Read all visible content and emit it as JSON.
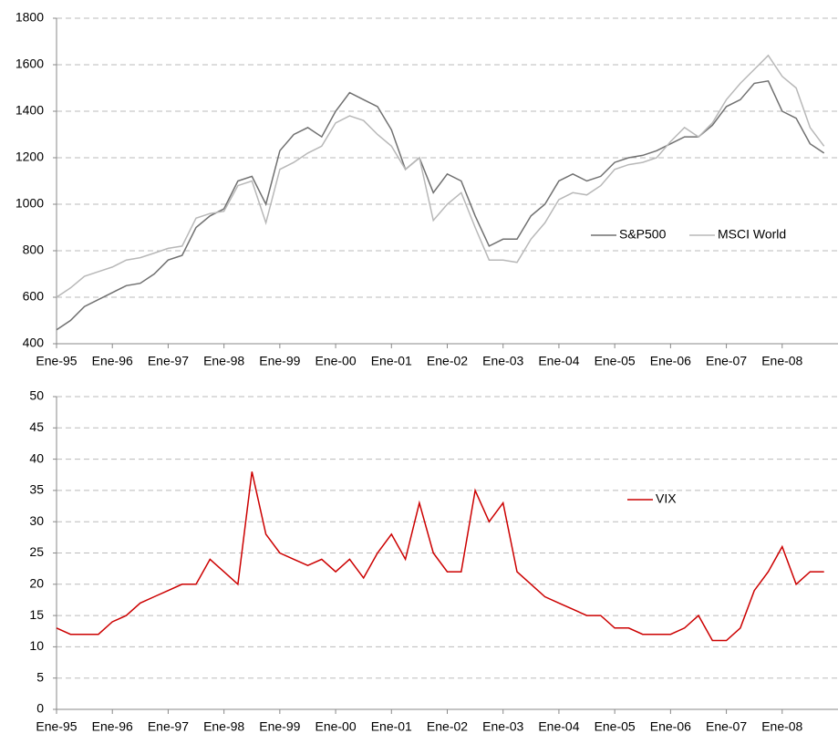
{
  "chart_data": [
    {
      "type": "line",
      "x": [
        "1995-01",
        "1995-04",
        "1995-07",
        "1995-10",
        "1996-01",
        "1996-04",
        "1996-07",
        "1996-10",
        "1997-01",
        "1997-04",
        "1997-07",
        "1997-10",
        "1998-01",
        "1998-04",
        "1998-07",
        "1998-10",
        "1999-01",
        "1999-04",
        "1999-07",
        "1999-10",
        "2000-01",
        "2000-04",
        "2000-07",
        "2000-10",
        "2001-01",
        "2001-04",
        "2001-07",
        "2001-10",
        "2002-01",
        "2002-04",
        "2002-07",
        "2002-10",
        "2003-01",
        "2003-04",
        "2003-07",
        "2003-10",
        "2004-01",
        "2004-04",
        "2004-07",
        "2004-10",
        "2005-01",
        "2005-04",
        "2005-07",
        "2005-10",
        "2006-01",
        "2006-04",
        "2006-07",
        "2006-10",
        "2007-01",
        "2007-04",
        "2007-07",
        "2007-10",
        "2008-01",
        "2008-04",
        "2008-07",
        "2008-10"
      ],
      "series": [
        {
          "name": "S&P500",
          "color": "#707070",
          "values": [
            460,
            500,
            560,
            590,
            620,
            650,
            660,
            700,
            760,
            780,
            900,
            950,
            980,
            1100,
            1120,
            1000,
            1230,
            1300,
            1330,
            1290,
            1400,
            1480,
            1450,
            1420,
            1320,
            1150,
            1200,
            1050,
            1130,
            1100,
            950,
            820,
            850,
            850,
            950,
            1000,
            1100,
            1130,
            1100,
            1120,
            1180,
            1200,
            1210,
            1230,
            1260,
            1290,
            1290,
            1340,
            1420,
            1450,
            1520,
            1530,
            1400,
            1370,
            1260,
            1220
          ]
        },
        {
          "name": "MSCI World",
          "color": "#b8b8b8",
          "values": [
            600,
            640,
            690,
            710,
            730,
            760,
            770,
            790,
            810,
            820,
            940,
            960,
            970,
            1080,
            1100,
            920,
            1150,
            1180,
            1220,
            1250,
            1350,
            1380,
            1360,
            1300,
            1250,
            1150,
            1200,
            930,
            1000,
            1050,
            900,
            760,
            760,
            750,
            850,
            920,
            1020,
            1050,
            1040,
            1080,
            1150,
            1170,
            1180,
            1200,
            1270,
            1330,
            1290,
            1350,
            1450,
            1520,
            1580,
            1640,
            1550,
            1500,
            1330,
            1250
          ]
        }
      ],
      "xlim": [
        "1995-01",
        "2009-01"
      ],
      "xticks": [
        {
          "value": "1995-01",
          "label": "Ene-95"
        },
        {
          "value": "1996-01",
          "label": "Ene-96"
        },
        {
          "value": "1997-01",
          "label": "Ene-97"
        },
        {
          "value": "1998-01",
          "label": "Ene-98"
        },
        {
          "value": "1999-01",
          "label": "Ene-99"
        },
        {
          "value": "2000-01",
          "label": "Ene-00"
        },
        {
          "value": "2001-01",
          "label": "Ene-01"
        },
        {
          "value": "2002-01",
          "label": "Ene-02"
        },
        {
          "value": "2003-01",
          "label": "Ene-03"
        },
        {
          "value": "2004-01",
          "label": "Ene-04"
        },
        {
          "value": "2005-01",
          "label": "Ene-05"
        },
        {
          "value": "2006-01",
          "label": "Ene-06"
        },
        {
          "value": "2007-01",
          "label": "Ene-07"
        },
        {
          "value": "2008-01",
          "label": "Ene-08"
        }
      ],
      "ylim": [
        400,
        1800
      ],
      "yticks": [
        400,
        600,
        800,
        1000,
        1200,
        1400,
        1600,
        1800
      ],
      "grid": true,
      "legend": "right"
    },
    {
      "type": "line",
      "x": [
        "1995-01",
        "1995-04",
        "1995-07",
        "1995-10",
        "1996-01",
        "1996-04",
        "1996-07",
        "1996-10",
        "1997-01",
        "1997-04",
        "1997-07",
        "1997-10",
        "1998-01",
        "1998-04",
        "1998-07",
        "1998-10",
        "1999-01",
        "1999-04",
        "1999-07",
        "1999-10",
        "2000-01",
        "2000-04",
        "2000-07",
        "2000-10",
        "2001-01",
        "2001-04",
        "2001-07",
        "2001-10",
        "2002-01",
        "2002-04",
        "2002-07",
        "2002-10",
        "2003-01",
        "2003-04",
        "2003-07",
        "2003-10",
        "2004-01",
        "2004-04",
        "2004-07",
        "2004-10",
        "2005-01",
        "2005-04",
        "2005-07",
        "2005-10",
        "2006-01",
        "2006-04",
        "2006-07",
        "2006-10",
        "2007-01",
        "2007-04",
        "2007-07",
        "2007-10",
        "2008-01",
        "2008-04",
        "2008-07",
        "2008-10"
      ],
      "series": [
        {
          "name": "VIX",
          "color": "#cc0000",
          "values": [
            13,
            12,
            12,
            12,
            14,
            15,
            17,
            18,
            19,
            20,
            20,
            24,
            22,
            20,
            38,
            28,
            25,
            24,
            23,
            24,
            22,
            24,
            21,
            25,
            28,
            24,
            33,
            25,
            22,
            22,
            35,
            30,
            33,
            22,
            20,
            18,
            17,
            16,
            15,
            15,
            13,
            13,
            12,
            12,
            12,
            13,
            15,
            11,
            11,
            13,
            19,
            22,
            26,
            20,
            22,
            22
          ]
        }
      ],
      "xlim": [
        "1995-01",
        "2009-01"
      ],
      "xticks": [
        {
          "value": "1995-01",
          "label": "Ene-95"
        },
        {
          "value": "1996-01",
          "label": "Ene-96"
        },
        {
          "value": "1997-01",
          "label": "Ene-97"
        },
        {
          "value": "1998-01",
          "label": "Ene-98"
        },
        {
          "value": "1999-01",
          "label": "Ene-99"
        },
        {
          "value": "2000-01",
          "label": "Ene-00"
        },
        {
          "value": "2001-01",
          "label": "Ene-01"
        },
        {
          "value": "2002-01",
          "label": "Ene-02"
        },
        {
          "value": "2003-01",
          "label": "Ene-03"
        },
        {
          "value": "2004-01",
          "label": "Ene-04"
        },
        {
          "value": "2005-01",
          "label": "Ene-05"
        },
        {
          "value": "2006-01",
          "label": "Ene-06"
        },
        {
          "value": "2007-01",
          "label": "Ene-07"
        },
        {
          "value": "2008-01",
          "label": "Ene-08"
        }
      ],
      "ylim": [
        0,
        50
      ],
      "yticks": [
        0,
        5,
        10,
        15,
        20,
        25,
        30,
        35,
        40,
        45,
        50
      ],
      "grid": true,
      "legend": "right"
    }
  ]
}
